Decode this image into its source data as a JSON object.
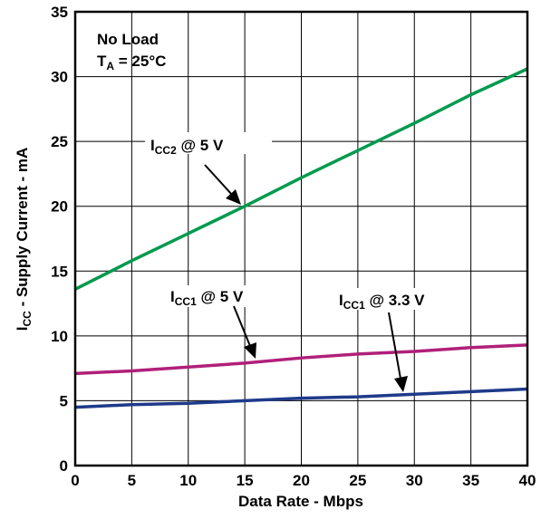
{
  "chart_data": {
    "type": "line",
    "xlabel": "Data Rate - Mbps",
    "ylabel": {
      "main": "I",
      "sub": "CC",
      "rest": " - Supply Current - mA"
    },
    "xlim": [
      0,
      40
    ],
    "ylim": [
      0,
      35
    ],
    "xticks": [
      "0",
      "5",
      "10",
      "15",
      "20",
      "25",
      "30",
      "35",
      "40"
    ],
    "yticks": [
      "0",
      "5",
      "10",
      "15",
      "20",
      "25",
      "30",
      "35"
    ],
    "grid": true,
    "condition": {
      "line1": "No Load",
      "line2_main": "T",
      "line2_sub": "A",
      "line2_rest": " = 25°C"
    },
    "series": [
      {
        "label_main": "I",
        "label_sub": "CC2",
        "label_rest": " @ 5 V",
        "color": "#009a4e",
        "x": [
          0,
          5,
          10,
          15,
          20,
          25,
          30,
          35,
          40
        ],
        "y": [
          13.6,
          15.8,
          17.9,
          20.0,
          22.2,
          24.3,
          26.4,
          28.6,
          30.6
        ]
      },
      {
        "label_main": "I",
        "label_sub": "CC1",
        "label_rest": " @ 5 V",
        "color": "#b0207a",
        "x": [
          0,
          5,
          10,
          15,
          20,
          25,
          30,
          35,
          40
        ],
        "y": [
          7.1,
          7.3,
          7.6,
          7.9,
          8.3,
          8.6,
          8.8,
          9.1,
          9.3
        ]
      },
      {
        "label_main": "I",
        "label_sub": "CC1",
        "label_rest": " @ 3.3 V",
        "color": "#1e3a8a",
        "x": [
          0,
          5,
          10,
          15,
          20,
          25,
          30,
          35,
          40
        ],
        "y": [
          4.5,
          4.7,
          4.8,
          5.0,
          5.2,
          5.3,
          5.5,
          5.7,
          5.9
        ]
      }
    ]
  }
}
